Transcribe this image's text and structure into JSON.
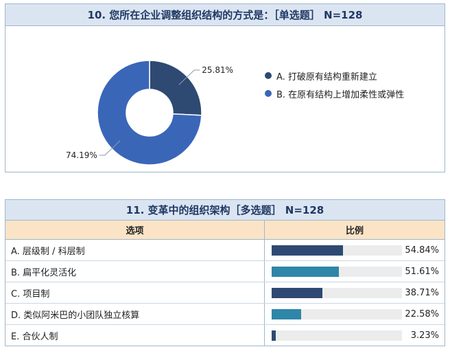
{
  "q10": {
    "title": "10. 您所在企业调整组织结构的方式是：［单选题］ N=128"
  },
  "q11": {
    "title": "11. 变革中的组织架构［多选题］ N=128",
    "col_option": "选项",
    "col_ratio": "比例"
  },
  "chart_data": [
    {
      "type": "pie",
      "donut": true,
      "categories": [
        "A. 打破原有结构重新建立",
        "B. 在原有结构上增加柔性或弹性"
      ],
      "values": [
        25.81,
        74.19
      ],
      "labels": [
        "25.81%",
        "74.19%"
      ],
      "colors": [
        "#2e4a72",
        "#3a66b8"
      ],
      "legend": "right"
    },
    {
      "type": "bar",
      "orientation": "horizontal",
      "categories": [
        "A. 层级制 / 科层制",
        "B. 扁平化灵活化",
        "C. 项目制",
        "D. 类似阿米巴的小团队独立核算",
        "E. 合伙人制"
      ],
      "values": [
        54.84,
        51.61,
        38.71,
        22.58,
        3.23
      ],
      "labels": [
        "54.84%",
        "51.61%",
        "38.71%",
        "22.58%",
        "3.23%"
      ],
      "colors": [
        "#2e4a72",
        "#2e86a8",
        "#2e4a72",
        "#2e86a8",
        "#2e4a72"
      ],
      "xlim": [
        0,
        100
      ]
    }
  ]
}
